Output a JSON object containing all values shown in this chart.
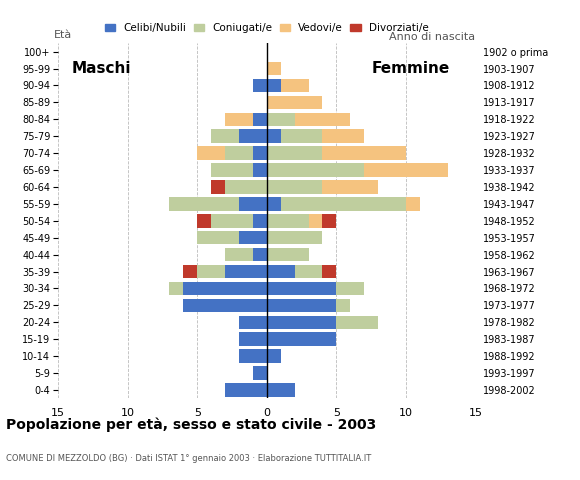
{
  "age_groups": [
    "100+",
    "95-99",
    "90-94",
    "85-89",
    "80-84",
    "75-79",
    "70-74",
    "65-69",
    "60-64",
    "55-59",
    "50-54",
    "45-49",
    "40-44",
    "35-39",
    "30-34",
    "25-29",
    "20-24",
    "15-19",
    "10-14",
    "5-9",
    "0-4"
  ],
  "birth_years": [
    "1902 o prima",
    "1903-1907",
    "1908-1912",
    "1913-1917",
    "1918-1922",
    "1923-1927",
    "1928-1932",
    "1933-1937",
    "1938-1942",
    "1943-1947",
    "1948-1952",
    "1953-1957",
    "1958-1962",
    "1963-1967",
    "1968-1972",
    "1973-1977",
    "1978-1982",
    "1983-1987",
    "1988-1992",
    "1993-1997",
    "1998-2002"
  ],
  "colors": {
    "celibe": "#4472C4",
    "coniugato": "#BFCE9E",
    "vedovo": "#F5C37F",
    "divorziato": "#C0392B"
  },
  "males": {
    "celibe": [
      0,
      0,
      1,
      0,
      1,
      2,
      1,
      1,
      0,
      2,
      1,
      2,
      1,
      3,
      6,
      6,
      2,
      2,
      2,
      1,
      3
    ],
    "coniugato": [
      0,
      0,
      0,
      0,
      0,
      2,
      2,
      3,
      3,
      5,
      3,
      3,
      2,
      2,
      1,
      0,
      0,
      0,
      0,
      0,
      0
    ],
    "vedovo": [
      0,
      0,
      0,
      0,
      2,
      0,
      2,
      0,
      0,
      0,
      0,
      0,
      0,
      0,
      0,
      0,
      0,
      0,
      0,
      0,
      0
    ],
    "divorziato": [
      0,
      0,
      0,
      0,
      0,
      0,
      0,
      0,
      1,
      0,
      1,
      0,
      0,
      1,
      0,
      0,
      0,
      0,
      0,
      0,
      0
    ]
  },
  "females": {
    "celibe": [
      0,
      0,
      1,
      0,
      0,
      1,
      0,
      0,
      0,
      1,
      0,
      0,
      0,
      2,
      5,
      5,
      5,
      5,
      1,
      0,
      2
    ],
    "coniugato": [
      0,
      0,
      0,
      0,
      2,
      3,
      4,
      7,
      4,
      9,
      3,
      4,
      3,
      2,
      2,
      1,
      3,
      0,
      0,
      0,
      0
    ],
    "vedovo": [
      0,
      1,
      2,
      4,
      4,
      3,
      6,
      6,
      4,
      1,
      1,
      0,
      0,
      0,
      0,
      0,
      0,
      0,
      0,
      0,
      0
    ],
    "divorziato": [
      0,
      0,
      0,
      0,
      0,
      0,
      0,
      0,
      0,
      0,
      1,
      0,
      0,
      1,
      0,
      0,
      0,
      0,
      0,
      0,
      0
    ]
  },
  "title": "Popolazione per età, sesso e stato civile - 2003",
  "subtitle": "COMUNE DI MEZZOLDO (BG) · Dati ISTAT 1° gennaio 2003 · Elaborazione TUTTITALIA.IT",
  "xlabel_left": "Maschi",
  "xlabel_right": "Femmine",
  "ylabel_left": "Età",
  "ylabel_right": "Anno di nascita",
  "xlim": 15,
  "legend_labels": [
    "Celibi/Nubili",
    "Coniugati/e",
    "Vedovi/e",
    "Divorziati/e"
  ],
  "background_color": "#FFFFFF"
}
